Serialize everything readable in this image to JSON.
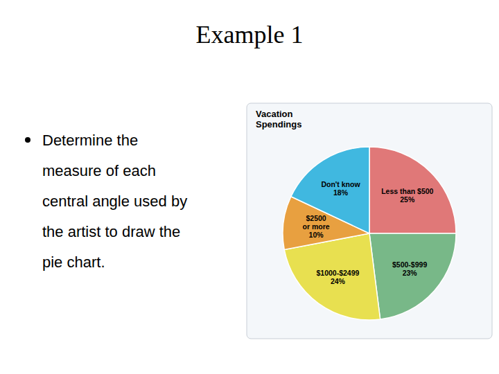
{
  "chart_data": {
    "type": "pie",
    "title": "Example 1",
    "subtitle": "Vacation\nSpendings",
    "annotations": [
      "Determine the",
      "measure of each",
      "central angle used by",
      "the artist to draw the",
      "pie chart."
    ],
    "categories": [
      "Less than $500",
      "$500-$999",
      "$1000-$2499",
      "$2500\nor more",
      "Don't know"
    ],
    "values": [
      25,
      23,
      24,
      10,
      18
    ],
    "value_labels": [
      "25%",
      "23%",
      "24%",
      "10%",
      "18%"
    ],
    "colors": [
      "#e07878",
      "#78b888",
      "#e8e050",
      "#e8a040",
      "#40b8e0"
    ],
    "data_labels": true
  }
}
